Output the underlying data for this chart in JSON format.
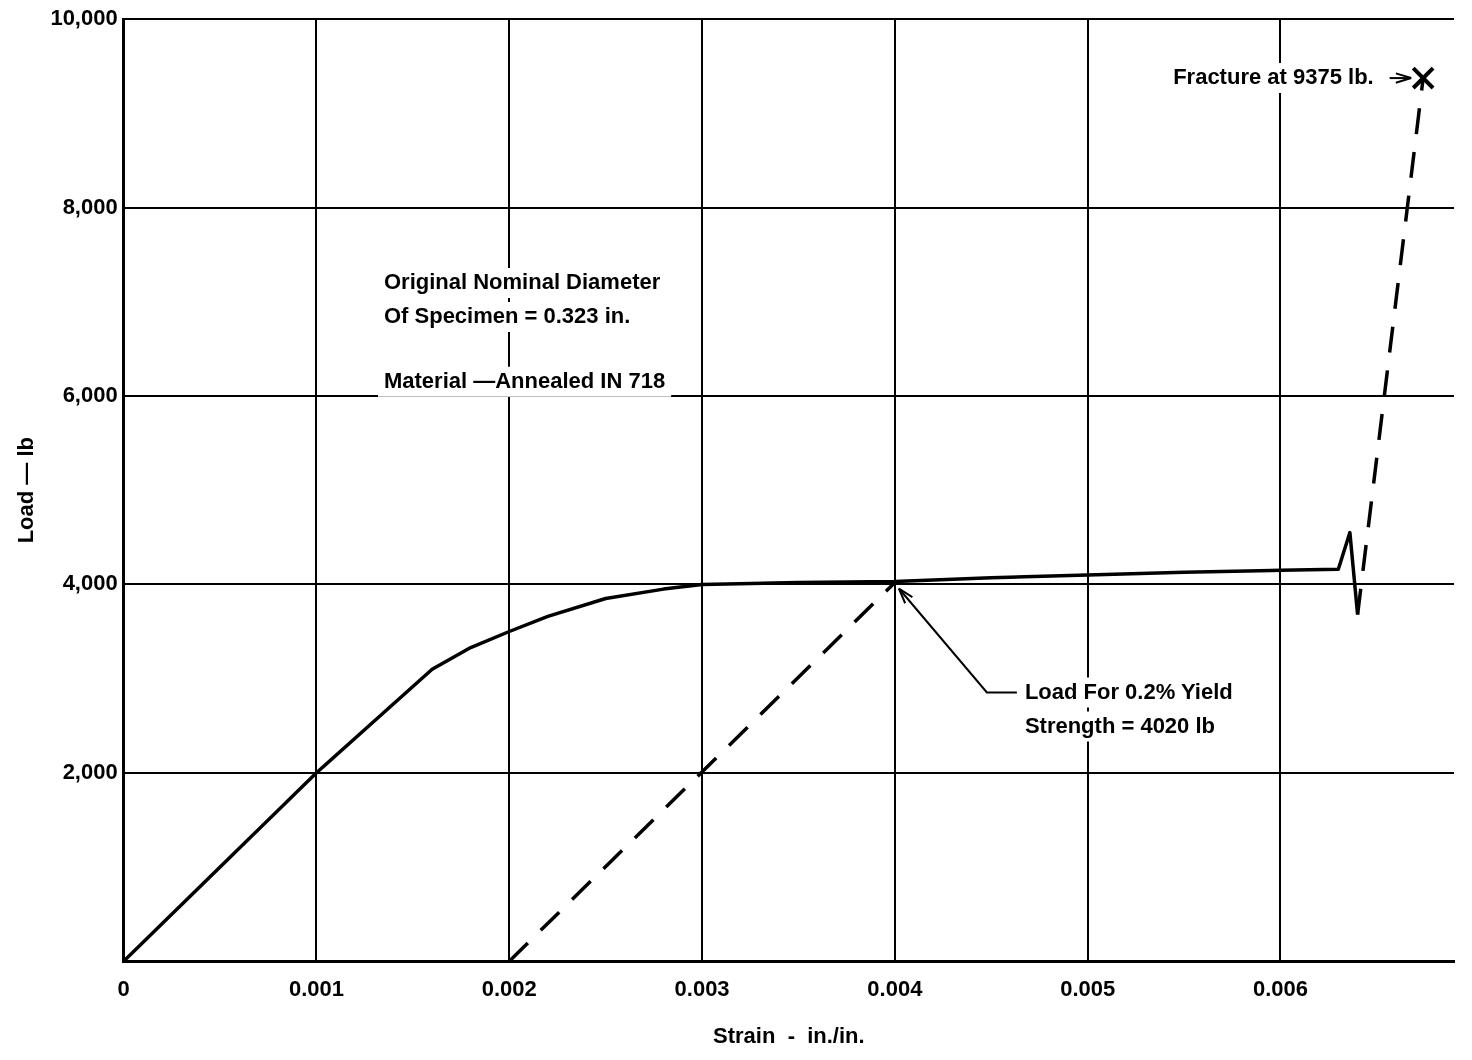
{
  "chart_data": {
    "type": "line",
    "xlabel": "Strain  -  in./in.",
    "ylabel": "Load — lb",
    "xlim": [
      0,
      0.0069
    ],
    "xticks": [
      {
        "value": 0,
        "label": "0"
      },
      0.001,
      0.002,
      0.003,
      0.004,
      0.005,
      0.006
    ],
    "ylim": [
      0,
      10000
    ],
    "yticks": [
      {
        "value": 0,
        "label": null
      },
      {
        "value": 2000,
        "label": "2,000"
      },
      {
        "value": 4000,
        "label": "4,000"
      },
      {
        "value": 6000,
        "label": "6,000"
      },
      {
        "value": 8000,
        "label": "8,000"
      },
      {
        "value": 10000,
        "label": "10,000"
      }
    ],
    "grid": true,
    "legend": false,
    "marker": "none",
    "series": [
      {
        "type": "line",
        "color": "#000000",
        "line_style": "solid",
        "x": [
          0,
          0.0005,
          0.001,
          0.0013,
          0.0016,
          0.0018,
          0.002,
          0.0022,
          0.0025,
          0.0028,
          0.003,
          0.0035,
          0.004,
          0.0045,
          0.005,
          0.0055,
          0.006,
          0.0063,
          0.00636,
          0.0064
        ],
        "values": [
          0,
          1000,
          2000,
          2550,
          3100,
          3330,
          3500,
          3660,
          3850,
          3950,
          4000,
          4020,
          4030,
          4070,
          4100,
          4130,
          4150,
          4160,
          4550,
          3680
        ]
      },
      {
        "type": "line",
        "color": "#000000",
        "line_style": "dashed",
        "x": [
          0.0064,
          0.00674
        ],
        "values": [
          3680,
          9375
        ]
      },
      {
        "type": "line",
        "color": "#000000",
        "line_style": "dashed",
        "x": [
          0.002,
          0.004
        ],
        "values": [
          0,
          4020
        ]
      },
      {
        "type": "scatter",
        "color": "#000000",
        "marker": "cross",
        "x": [
          0.00674
        ],
        "values": [
          9375
        ]
      }
    ],
    "annotations": [
      {
        "text": "Fracture at 9375 lb.",
        "x": 0.00674,
        "y": 9375
      },
      {
        "text": "Load For 0.2% Yield\nStrength = 4020 lb",
        "x": 0.004,
        "y": 4020
      },
      "Original Nominal Diameter\nOf Specimen = 0.323 in.",
      "Material —Annealed IN 718"
    ]
  }
}
